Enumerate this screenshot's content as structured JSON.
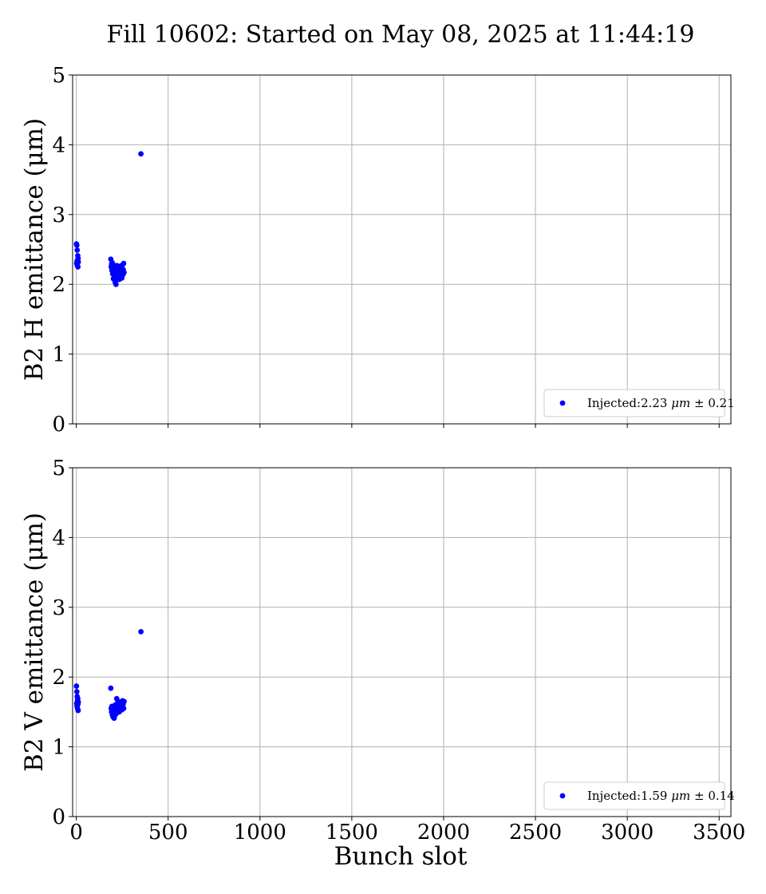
{
  "chart_data": [
    {
      "type": "scatter",
      "title": "Fill 10602: Started on May 08, 2025 at 11:44:19",
      "ylabel": "B2 H emittance (μm)",
      "xlabel": "",
      "xlim": [
        -20,
        3564
      ],
      "ylim": [
        0,
        5
      ],
      "xticks": [
        0,
        500,
        1000,
        1500,
        2000,
        2500,
        3000,
        3500
      ],
      "yticks": [
        0,
        1,
        2,
        3,
        4,
        5
      ],
      "show_xtick_labels": false,
      "grid": true,
      "legend_position": "lower-right",
      "color": "#0000ff",
      "series": [
        {
          "name": "Injected:2.23 μm ± 0.21",
          "legend_prefix": "Injected:2.23 ",
          "legend_unit": "μm",
          "legend_suffix": " ± 0.21",
          "points": [
            [
              1,
              2.58
            ],
            [
              2,
              2.3
            ],
            [
              3,
              2.56
            ],
            [
              4,
              2.33
            ],
            [
              5,
              2.49
            ],
            [
              6,
              2.27
            ],
            [
              7,
              2.35
            ],
            [
              8,
              2.41
            ],
            [
              9,
              2.25
            ],
            [
              10,
              2.37
            ],
            [
              11,
              2.32
            ],
            [
              188,
              2.36
            ],
            [
              190,
              2.25
            ],
            [
              192,
              2.29
            ],
            [
              194,
              2.2
            ],
            [
              196,
              2.31
            ],
            [
              198,
              2.15
            ],
            [
              200,
              2.24
            ],
            [
              202,
              2.08
            ],
            [
              204,
              2.18
            ],
            [
              206,
              2.26
            ],
            [
              208,
              2.12
            ],
            [
              210,
              2.22
            ],
            [
              212,
              2.03
            ],
            [
              214,
              2.17
            ],
            [
              216,
              2.0
            ],
            [
              218,
              2.14
            ],
            [
              220,
              2.27
            ],
            [
              222,
              2.1
            ],
            [
              224,
              2.21
            ],
            [
              226,
              2.16
            ],
            [
              228,
              2.25
            ],
            [
              230,
              2.13
            ],
            [
              232,
              2.23
            ],
            [
              234,
              2.07
            ],
            [
              236,
              2.19
            ],
            [
              238,
              2.26
            ],
            [
              240,
              2.11
            ],
            [
              242,
              2.2
            ],
            [
              244,
              2.15
            ],
            [
              246,
              2.24
            ],
            [
              248,
              2.09
            ],
            [
              250,
              2.18
            ],
            [
              252,
              2.28
            ],
            [
              254,
              2.14
            ],
            [
              256,
              2.21
            ],
            [
              258,
              2.3
            ],
            [
              260,
              2.17
            ],
            [
              352,
              3.87
            ]
          ]
        }
      ]
    },
    {
      "type": "scatter",
      "ylabel": "B2 V emittance (μm)",
      "xlabel": "Bunch slot",
      "xlim": [
        -20,
        3564
      ],
      "ylim": [
        0,
        5
      ],
      "xticks": [
        0,
        500,
        1000,
        1500,
        2000,
        2500,
        3000,
        3500
      ],
      "yticks": [
        0,
        1,
        2,
        3,
        4,
        5
      ],
      "xtick_labels": [
        "0",
        "500",
        "1000",
        "1500",
        "2000",
        "2500",
        "3000",
        "3500"
      ],
      "show_xtick_labels": true,
      "grid": true,
      "legend_position": "lower-right",
      "color": "#0000ff",
      "series": [
        {
          "name": "Injected:1.59 μm ± 0.14",
          "legend_prefix": "Injected:1.59 ",
          "legend_unit": "μm",
          "legend_suffix": " ± 0.14",
          "points": [
            [
              1,
              1.87
            ],
            [
              2,
              1.62
            ],
            [
              3,
              1.79
            ],
            [
              4,
              1.58
            ],
            [
              5,
              1.72
            ],
            [
              6,
              1.66
            ],
            [
              7,
              1.55
            ],
            [
              8,
              1.69
            ],
            [
              9,
              1.61
            ],
            [
              10,
              1.52
            ],
            [
              11,
              1.64
            ],
            [
              188,
              1.84
            ],
            [
              190,
              1.55
            ],
            [
              192,
              1.5
            ],
            [
              194,
              1.58
            ],
            [
              196,
              1.46
            ],
            [
              198,
              1.53
            ],
            [
              200,
              1.43
            ],
            [
              202,
              1.57
            ],
            [
              204,
              1.49
            ],
            [
              206,
              1.41
            ],
            [
              208,
              1.54
            ],
            [
              210,
              1.45
            ],
            [
              212,
              1.6
            ],
            [
              214,
              1.51
            ],
            [
              216,
              1.47
            ],
            [
              218,
              1.56
            ],
            [
              220,
              1.69
            ],
            [
              222,
              1.52
            ],
            [
              224,
              1.62
            ],
            [
              226,
              1.57
            ],
            [
              228,
              1.65
            ],
            [
              230,
              1.55
            ],
            [
              232,
              1.6
            ],
            [
              234,
              1.5
            ],
            [
              236,
              1.63
            ],
            [
              238,
              1.58
            ],
            [
              240,
              1.54
            ],
            [
              242,
              1.61
            ],
            [
              244,
              1.56
            ],
            [
              246,
              1.64
            ],
            [
              248,
              1.53
            ],
            [
              250,
              1.59
            ],
            [
              252,
              1.66
            ],
            [
              254,
              1.57
            ],
            [
              256,
              1.62
            ],
            [
              258,
              1.55
            ],
            [
              260,
              1.65
            ],
            [
              352,
              2.65
            ]
          ]
        }
      ]
    }
  ]
}
